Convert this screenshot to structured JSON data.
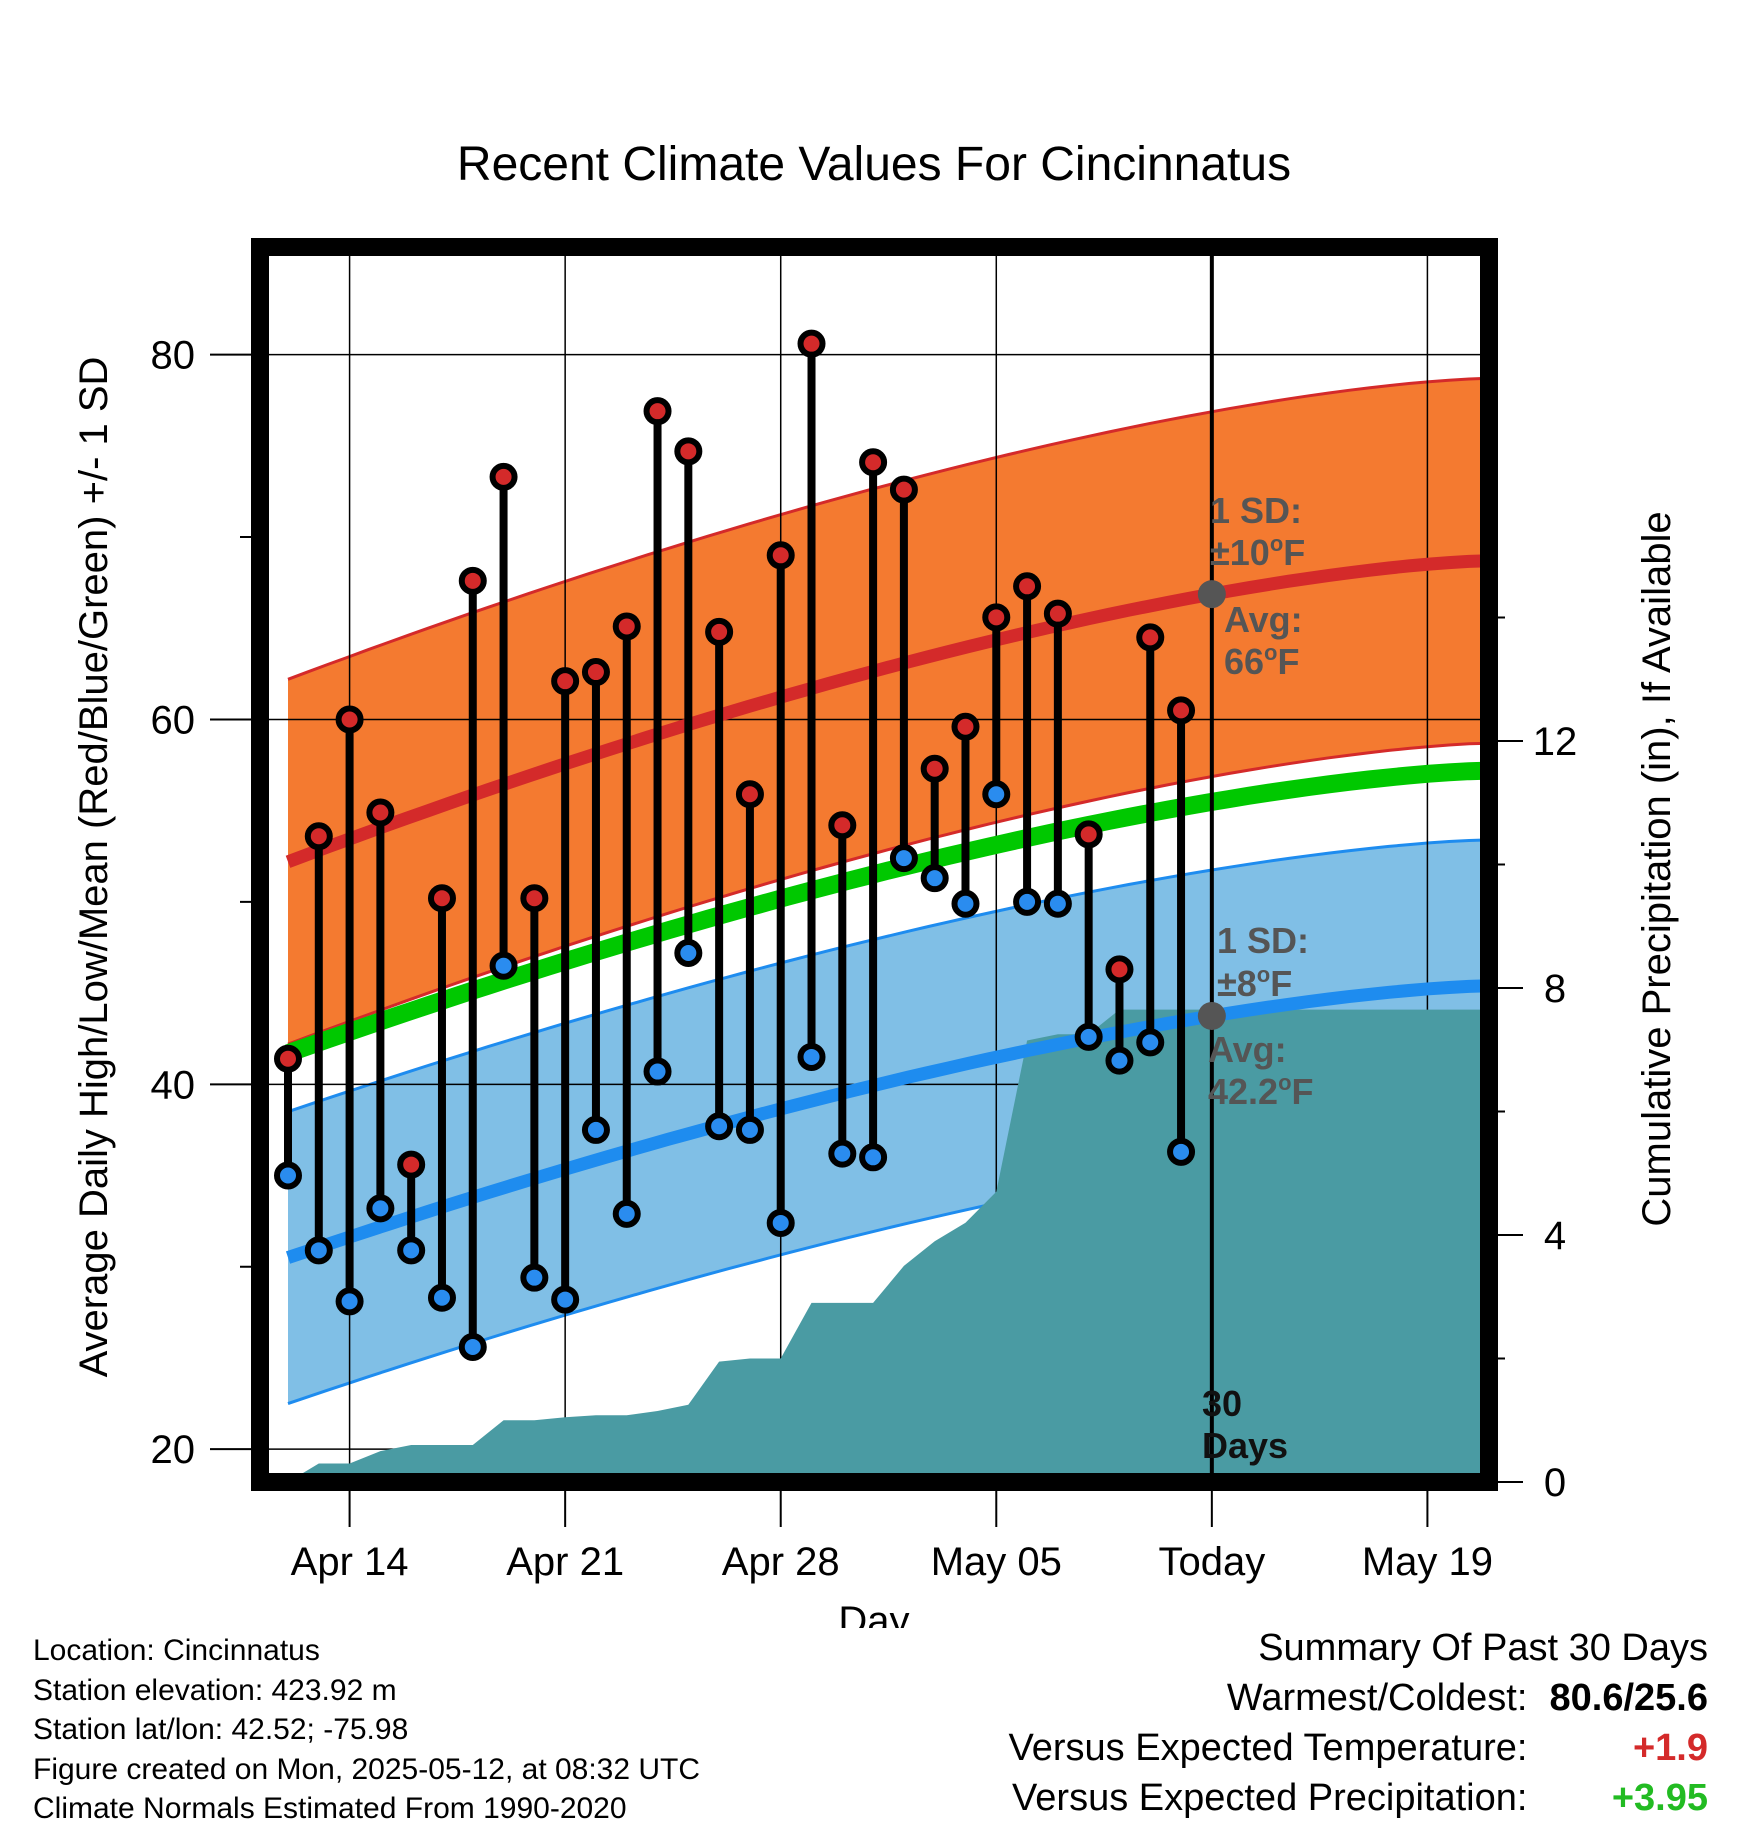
{
  "title": "Recent Climate Values For Cincinnatus",
  "chart_data": {
    "type": "line",
    "xlabel": "Day",
    "ylabel": "Average Daily High/Low/Mean (Red/Blue/Green) +/- 1 SD",
    "y2label": "Cumulative Precipitation (in), If Available",
    "ylim": [
      18.2,
      85.9
    ],
    "y2lim": [
      0,
      20
    ],
    "x_range": [
      "2025-04-12",
      "2025-05-21"
    ],
    "x_ticks": [
      {
        "date": "2025-04-14",
        "label": "Apr 14"
      },
      {
        "date": "2025-04-21",
        "label": "Apr 21"
      },
      {
        "date": "2025-04-28",
        "label": "Apr 28"
      },
      {
        "date": "2025-05-05",
        "label": "May 05"
      },
      {
        "date": "2025-05-12",
        "label": "Today"
      },
      {
        "date": "2025-05-19",
        "label": "May 19"
      }
    ],
    "y_ticks": [
      20,
      40,
      60,
      80
    ],
    "y2_ticks": [
      0,
      4,
      8,
      12
    ],
    "grid": true,
    "today": "2025-05-12",
    "today_label": "30 Days",
    "normals": {
      "high_mean": {
        "start": 52.2,
        "end": 68.7
      },
      "high_sd": 10,
      "low_mean": {
        "start": 30.5,
        "end": 45.4
      },
      "low_sd": 8,
      "mean": {
        "start": 41.7,
        "end": 57.2
      }
    },
    "observations": [
      {
        "date": "2025-04-12",
        "high": 41.4,
        "low": 35.0
      },
      {
        "date": "2025-04-13",
        "high": 53.6,
        "low": 30.9
      },
      {
        "date": "2025-04-14",
        "high": 60.0,
        "low": 28.1
      },
      {
        "date": "2025-04-15",
        "high": 54.9,
        "low": 33.2
      },
      {
        "date": "2025-04-16",
        "high": 35.6,
        "low": 30.9
      },
      {
        "date": "2025-04-17",
        "high": 50.2,
        "low": 28.3
      },
      {
        "date": "2025-04-18",
        "high": 67.6,
        "low": 25.6
      },
      {
        "date": "2025-04-19",
        "high": 73.3,
        "low": 46.5
      },
      {
        "date": "2025-04-20",
        "high": 50.2,
        "low": 29.4
      },
      {
        "date": "2025-04-21",
        "high": 62.1,
        "low": 28.2
      },
      {
        "date": "2025-04-22",
        "high": 62.6,
        "low": 37.5
      },
      {
        "date": "2025-04-23",
        "high": 65.1,
        "low": 32.9
      },
      {
        "date": "2025-04-24",
        "high": 76.9,
        "low": 40.7
      },
      {
        "date": "2025-04-25",
        "high": 74.7,
        "low": 47.2
      },
      {
        "date": "2025-04-26",
        "high": 64.8,
        "low": 37.7
      },
      {
        "date": "2025-04-27",
        "high": 55.9,
        "low": 37.5
      },
      {
        "date": "2025-04-28",
        "high": 69.0,
        "low": 32.4
      },
      {
        "date": "2025-04-29",
        "high": 80.6,
        "low": 41.5
      },
      {
        "date": "2025-04-30",
        "high": 54.2,
        "low": 36.2
      },
      {
        "date": "2025-05-01",
        "high": 74.1,
        "low": 36.0
      },
      {
        "date": "2025-05-02",
        "high": 72.6,
        "low": 52.4
      },
      {
        "date": "2025-05-03",
        "high": 57.3,
        "low": 51.3
      },
      {
        "date": "2025-05-04",
        "high": 59.6,
        "low": 49.9
      },
      {
        "date": "2025-05-05",
        "high": 65.6,
        "low": 55.9
      },
      {
        "date": "2025-05-06",
        "high": 67.3,
        "low": 50.0
      },
      {
        "date": "2025-05-07",
        "high": 65.8,
        "low": 49.9
      },
      {
        "date": "2025-05-08",
        "high": 53.7,
        "low": 42.6
      },
      {
        "date": "2025-05-09",
        "high": 46.3,
        "low": 41.3
      },
      {
        "date": "2025-05-10",
        "high": 64.5,
        "low": 42.3
      },
      {
        "date": "2025-05-11",
        "high": 60.5,
        "low": 36.3
      }
    ],
    "cumulative_precip": [
      {
        "date": "2025-04-12",
        "value": 0.0
      },
      {
        "date": "2025-04-13",
        "value": 0.3
      },
      {
        "date": "2025-04-14",
        "value": 0.3
      },
      {
        "date": "2025-04-15",
        "value": 0.5
      },
      {
        "date": "2025-04-16",
        "value": 0.6
      },
      {
        "date": "2025-04-17",
        "value": 0.6
      },
      {
        "date": "2025-04-18",
        "value": 0.6
      },
      {
        "date": "2025-04-19",
        "value": 1.0
      },
      {
        "date": "2025-04-20",
        "value": 1.0
      },
      {
        "date": "2025-04-21",
        "value": 1.05
      },
      {
        "date": "2025-04-22",
        "value": 1.08
      },
      {
        "date": "2025-04-23",
        "value": 1.08
      },
      {
        "date": "2025-04-24",
        "value": 1.15
      },
      {
        "date": "2025-04-25",
        "value": 1.25
      },
      {
        "date": "2025-04-26",
        "value": 1.95
      },
      {
        "date": "2025-04-27",
        "value": 2.0
      },
      {
        "date": "2025-04-28",
        "value": 2.0
      },
      {
        "date": "2025-04-29",
        "value": 2.9
      },
      {
        "date": "2025-04-30",
        "value": 2.9
      },
      {
        "date": "2025-05-01",
        "value": 2.9
      },
      {
        "date": "2025-05-02",
        "value": 3.5
      },
      {
        "date": "2025-05-03",
        "value": 3.9
      },
      {
        "date": "2025-05-04",
        "value": 4.2
      },
      {
        "date": "2025-05-05",
        "value": 4.7
      },
      {
        "date": "2025-05-06",
        "value": 7.15
      },
      {
        "date": "2025-05-07",
        "value": 7.25
      },
      {
        "date": "2025-05-08",
        "value": 7.25
      },
      {
        "date": "2025-05-09",
        "value": 7.65
      },
      {
        "date": "2025-05-10",
        "value": 7.65
      },
      {
        "date": "2025-05-11",
        "value": 7.65
      },
      {
        "date": "2025-05-12",
        "value": 7.65
      },
      {
        "date": "2025-05-21",
        "value": 7.65
      }
    ],
    "annotations": {
      "high_sd": "1 SD:",
      "high_sd_value": "±10",
      "high_sd_unit": "F",
      "high_avg": "Avg:",
      "high_avg_value": "66",
      "high_avg_unit": "F",
      "low_sd": "1 SD:",
      "low_sd_value": "±8",
      "low_sd_unit": "F",
      "low_avg": "Avg:",
      "low_avg_value": "42.2",
      "low_avg_unit": "F",
      "degree_mark": "o",
      "today_days": "30",
      "today_days_word": "Days"
    },
    "colors": {
      "high_band": "#f47a30",
      "high_line": "#d42a2a",
      "low_band": "#80bfe6",
      "low_line": "#1e8cef",
      "mean_line": "#00c800",
      "precip": "#4a9ba3",
      "high_marker": "#d42a2a",
      "low_marker": "#2a8cef",
      "avg_marker": "#555555"
    }
  },
  "info": {
    "location": "Location: Cincinnatus",
    "elevation": "Station elevation: 423.92 m",
    "latlon": "Station lat/lon: 42.52; -75.98",
    "created": "Figure created on Mon, 2025-05-12, at 08:32 UTC",
    "normals": "Climate Normals Estimated From 1990-2020"
  },
  "summary": {
    "heading": "Summary Of Past 30 Days",
    "warmest_label": "Warmest/Coldest:",
    "warmest_value": "80.6/25.6",
    "temp_label": "Versus Expected Temperature:",
    "temp_value": "+1.9",
    "temp_color": "#d42a2a",
    "precip_label": "Versus Expected Precipitation:",
    "precip_value": "+3.95",
    "precip_color": "#22bb22"
  }
}
